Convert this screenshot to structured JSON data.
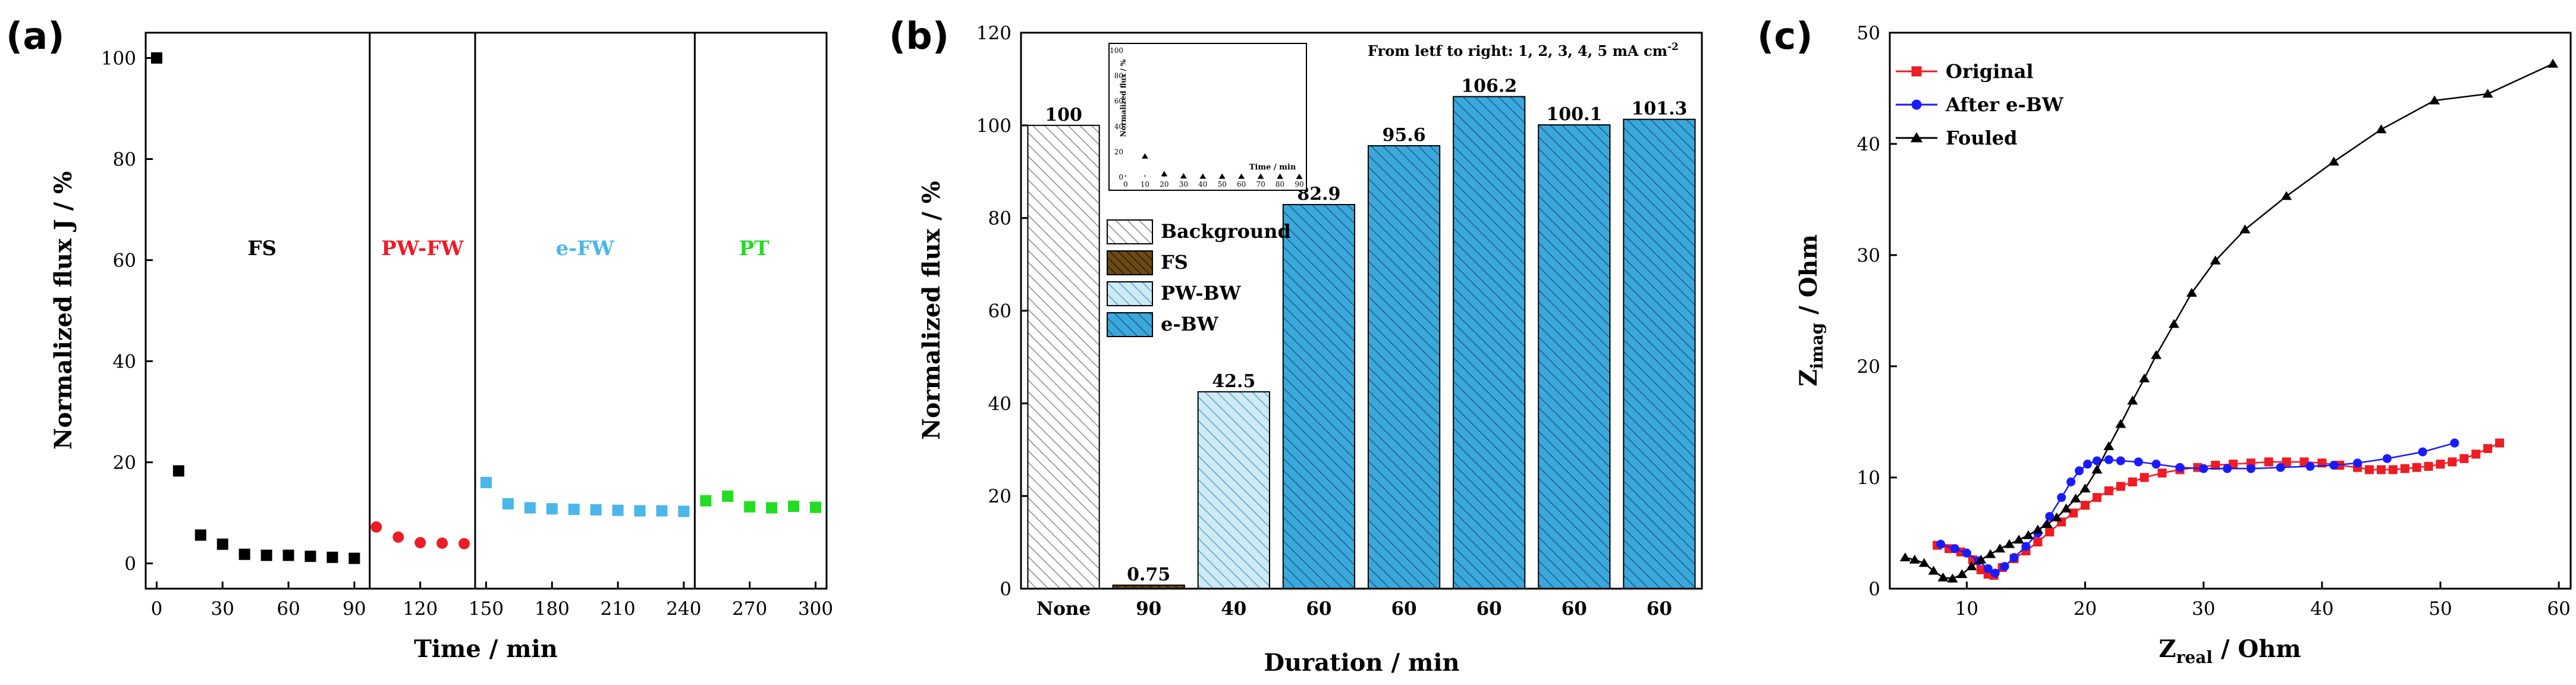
{
  "chart_data": [
    {
      "panel": "(a)",
      "type": "scatter",
      "xlabel": "Time / min",
      "ylabel": "Normalized flux J / %",
      "xlim": [
        -5,
        305
      ],
      "ylim": [
        -5,
        105
      ],
      "xticks": [
        0,
        30,
        60,
        90,
        120,
        150,
        180,
        210,
        240,
        270,
        300
      ],
      "yticks": [
        0,
        20,
        40,
        60,
        80,
        100
      ],
      "dividers": [
        97,
        145,
        245
      ],
      "regions": [
        {
          "label": "FS",
          "x": 48,
          "y": 61,
          "color": "#000000"
        },
        {
          "label": "PW-FW",
          "x": 121,
          "y": 61,
          "color": "#ee1c24"
        },
        {
          "label": "e-FW",
          "x": 195,
          "y": 61,
          "color": "#4ab6ea"
        },
        {
          "label": "PT",
          "x": 272,
          "y": 61,
          "color": "#22dd22"
        }
      ],
      "series": [
        {
          "name": "FS",
          "color": "#000000",
          "marker": "square",
          "x": [
            0,
            10,
            20,
            30,
            40,
            50,
            60,
            70,
            80,
            90
          ],
          "y": [
            100,
            18.3,
            5.6,
            3.8,
            1.8,
            1.6,
            1.6,
            1.4,
            1.2,
            1.0
          ]
        },
        {
          "name": "PW-FW",
          "color": "#ee1c24",
          "marker": "circle",
          "x": [
            100,
            110,
            120,
            130,
            140
          ],
          "y": [
            7.2,
            5.2,
            4.1,
            4.0,
            3.9
          ]
        },
        {
          "name": "e-FW",
          "color": "#4ab6ea",
          "marker": "square",
          "x": [
            150,
            160,
            170,
            180,
            190,
            200,
            210,
            220,
            230,
            240
          ],
          "y": [
            16.0,
            11.8,
            11.0,
            10.8,
            10.7,
            10.6,
            10.5,
            10.4,
            10.4,
            10.3
          ]
        },
        {
          "name": "PT",
          "color": "#22dd22",
          "marker": "square",
          "x": [
            250,
            260,
            270,
            280,
            290,
            300
          ],
          "y": [
            12.4,
            13.3,
            11.2,
            11.0,
            11.3,
            11.1
          ]
        }
      ]
    },
    {
      "panel": "(b)",
      "type": "bar",
      "xlabel": "Duration / min",
      "ylabel": "Normalized flux / %",
      "ylim": [
        0,
        120
      ],
      "yticks": [
        0,
        20,
        40,
        60,
        80,
        100,
        120
      ],
      "categories": [
        "None",
        "90",
        "40",
        "60",
        "60",
        "60",
        "60",
        "60"
      ],
      "values": [
        100,
        0.75,
        42.5,
        82.9,
        95.6,
        106.2,
        100.1,
        101.3
      ],
      "value_labels": [
        "100",
        "0.75",
        "42.5",
        "82.9",
        "95.6",
        "106.2",
        "100.1",
        "101.3"
      ],
      "bar_types": [
        "Background",
        "FS",
        "PW-BW",
        "e-BW",
        "e-BW",
        "e-BW",
        "e-BW",
        "e-BW"
      ],
      "legend": [
        {
          "label": "Background",
          "fill": "#ffffff",
          "hatch": "#8a8a8a"
        },
        {
          "label": "FS",
          "fill": "#6b4a16",
          "hatch": "#2a1a05"
        },
        {
          "label": "PW-BW",
          "fill": "#cdeaf5",
          "hatch": "#5aa6c4"
        },
        {
          "label": "e-BW",
          "fill": "#3ba8dc",
          "hatch": "#1a5f86"
        }
      ],
      "annotation": "From letf to right: 1, 2, 3, 4, 5 mA cm",
      "annotation_sup": "-2",
      "inset": {
        "type": "line",
        "xlabel": "Time / min",
        "ylabel": "Normalized flux / %",
        "xlim": [
          0,
          90
        ],
        "ylim": [
          0,
          100
        ],
        "xticks": [
          0,
          10,
          20,
          30,
          40,
          50,
          60,
          70,
          80,
          90
        ],
        "yticks": [
          0,
          20,
          40,
          60,
          80,
          100
        ],
        "x": [
          10,
          20,
          30,
          40,
          50,
          60,
          70,
          80,
          90
        ],
        "y": [
          16.5,
          2.5,
          0.8,
          0.6,
          0.6,
          0.5,
          0.5,
          0.5,
          0.4
        ]
      }
    },
    {
      "panel": "(c)",
      "type": "line",
      "xlabel_main": "Z",
      "xlabel_sub": "real",
      "xlabel_rest": " / Ohm",
      "ylabel_main": "Z",
      "ylabel_sub": "imag",
      "ylabel_rest": " / Ohm",
      "xlim": [
        3.5,
        61
      ],
      "ylim": [
        0,
        50
      ],
      "xticks": [
        10,
        20,
        30,
        40,
        50,
        60
      ],
      "yticks": [
        0,
        10,
        20,
        30,
        40,
        50
      ],
      "series": [
        {
          "name": "Original",
          "color": "#ee1c24",
          "marker": "square",
          "x": [
            7.5,
            8.5,
            9.5,
            10.5,
            11.2,
            11.8,
            12.3,
            13.0,
            14.0,
            15.0,
            16.0,
            17.0,
            18.0,
            19.0,
            20.0,
            21.0,
            22.0,
            23.0,
            24.0,
            25.0,
            26.5,
            28.0,
            29.5,
            31.0,
            32.5,
            34.0,
            35.5,
            37.0,
            38.5,
            40.0,
            41.5,
            43.0,
            44.0,
            45.0,
            46.0,
            47.0,
            48.0,
            49.0,
            50.0,
            51.0,
            52.0,
            53.0,
            54.0,
            55.0
          ],
          "y": [
            3.9,
            3.6,
            3.3,
            2.6,
            1.7,
            1.3,
            1.2,
            1.9,
            2.7,
            3.4,
            4.2,
            5.1,
            6.0,
            6.8,
            7.5,
            8.2,
            8.8,
            9.2,
            9.6,
            10.0,
            10.4,
            10.7,
            10.9,
            11.1,
            11.2,
            11.3,
            11.4,
            11.4,
            11.4,
            11.3,
            11.1,
            10.9,
            10.7,
            10.7,
            10.7,
            10.8,
            10.9,
            11.0,
            11.2,
            11.4,
            11.7,
            12.1,
            12.6,
            13.1
          ]
        },
        {
          "name": "After e-BW",
          "color": "#1a1aff",
          "marker": "circle",
          "x": [
            7.8,
            9.0,
            10.0,
            11.0,
            11.8,
            12.4,
            13.2,
            14.0,
            15.0,
            16.0,
            17.0,
            18.0,
            18.8,
            19.5,
            20.2,
            21.0,
            22.0,
            23.0,
            24.5,
            26.0,
            28.0,
            30.0,
            32.0,
            34.0,
            36.5,
            39.0,
            41.0,
            43.0,
            45.5,
            48.5,
            51.2
          ],
          "y": [
            4.0,
            3.6,
            3.2,
            2.5,
            1.8,
            1.4,
            2.0,
            2.8,
            3.8,
            5.0,
            6.5,
            8.2,
            9.6,
            10.6,
            11.2,
            11.5,
            11.6,
            11.5,
            11.4,
            11.2,
            10.9,
            10.8,
            10.8,
            10.8,
            10.9,
            11.0,
            11.1,
            11.3,
            11.7,
            12.3,
            13.1
          ]
        },
        {
          "name": "Fouled",
          "color": "#000000",
          "marker": "triangle",
          "x": [
            4.8,
            5.6,
            6.4,
            7.2,
            8.0,
            8.8,
            9.6,
            10.4,
            11.2,
            12.0,
            12.8,
            13.6,
            14.4,
            15.2,
            16.0,
            16.8,
            17.6,
            18.4,
            19.2,
            20.0,
            21.0,
            22.0,
            23.0,
            24.0,
            25.0,
            26.0,
            27.5,
            29.0,
            31.0,
            33.5,
            37.0,
            41.0,
            45.0,
            49.5,
            54.0,
            59.5
          ],
          "y": [
            2.8,
            2.6,
            2.3,
            1.6,
            1.0,
            0.9,
            1.3,
            2.0,
            2.6,
            3.1,
            3.6,
            4.0,
            4.4,
            4.8,
            5.3,
            5.8,
            6.4,
            7.2,
            8.1,
            9.0,
            10.7,
            12.8,
            14.8,
            16.9,
            18.9,
            21.0,
            23.8,
            26.6,
            29.5,
            32.3,
            35.3,
            38.4,
            41.3,
            43.9,
            44.5,
            47.2
          ]
        }
      ]
    }
  ]
}
